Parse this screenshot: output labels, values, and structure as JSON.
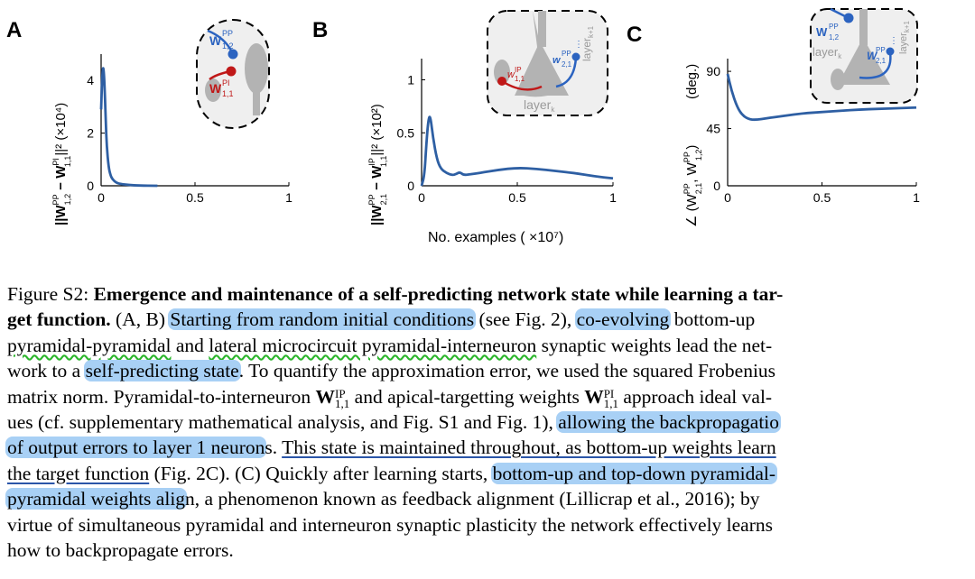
{
  "panels": {
    "a": {
      "letter": "A",
      "ylabel": "||W",
      "ylabel_sup1": "PP",
      "ylabel_sub1": "1,2",
      "ylabel_mid": " − W",
      "ylabel_sup2": "PI",
      "ylabel_sub2": "1,1",
      "ylabel_end": "||² (×10⁴)",
      "inset": {
        "w1": "W",
        "w1_sup": "PP",
        "w1_sub": "1,2",
        "w2": "W",
        "w2_sup": "PI",
        "w2_sub": "1,1"
      }
    },
    "b": {
      "letter": "B",
      "ylabel": "||W",
      "ylabel_sup1": "PP",
      "ylabel_sub1": "2,1",
      "ylabel_mid": " − W",
      "ylabel_sup2": "IP",
      "ylabel_sub2": "1,1",
      "ylabel_end": "||² (×10²)",
      "xlabel": "No. examples (  ×10⁷)",
      "inset": {
        "w1": "w",
        "w1_sup": "IP",
        "w1_sub": "1,1",
        "w2": "w",
        "w2_sup": "PP",
        "w2_sub": "2,1",
        "layer1": "layer",
        "layer1_sub": "k",
        "layer2": "layer",
        "layer2_sub": "k+1"
      }
    },
    "c": {
      "letter": "C",
      "ylabel": "∠ (W",
      "ylabel_sup1": "PP",
      "ylabel_sub1": "2,1",
      "ylabel_mid": ", W",
      "ylabel_sup2": "PP",
      "ylabel_sub2": "1,2",
      "ylabel_end": ")",
      "ylabel_unit": "(deg.)",
      "inset": {
        "w1": "W",
        "w1_sup": "PP",
        "w1_sub": "1,2",
        "w2": "W",
        "w2_sup": "PP",
        "w2_sub": "2,1",
        "layer1": "layer",
        "layer1_sub": "k",
        "layer2": "layer",
        "layer2_sub": "k+1"
      }
    }
  },
  "chart_data": [
    {
      "type": "line",
      "xlim": [
        0,
        1
      ],
      "ylim": [
        0,
        5
      ],
      "xticks": [
        "0",
        "0.5",
        "1"
      ],
      "yticks": [
        "0",
        "2",
        "4"
      ],
      "series": [
        {
          "x": [
            0,
            0.005,
            0.01,
            0.015,
            0.02,
            0.025,
            0.03,
            0.04,
            0.05,
            0.06,
            0.08,
            0.1,
            0.15,
            0.2,
            0.3
          ],
          "y": [
            2.9,
            4.0,
            4.55,
            4.3,
            3.5,
            2.4,
            1.5,
            0.7,
            0.4,
            0.25,
            0.12,
            0.07,
            0.03,
            0.01,
            0
          ]
        }
      ]
    },
    {
      "type": "line",
      "xlim": [
        0,
        1
      ],
      "ylim": [
        0,
        1.2
      ],
      "xticks": [
        "0",
        "0.5",
        "1"
      ],
      "yticks": [
        "0",
        "0.5",
        "1"
      ],
      "series": [
        {
          "x": [
            0,
            0.015,
            0.025,
            0.035,
            0.045,
            0.06,
            0.08,
            0.1,
            0.13,
            0.16,
            0.18,
            0.2,
            0.22,
            0.26,
            0.3,
            0.4,
            0.5,
            0.6,
            0.7,
            0.8,
            0.9,
            1.0
          ],
          "y": [
            0,
            0.1,
            0.4,
            0.62,
            0.67,
            0.45,
            0.25,
            0.16,
            0.12,
            0.1,
            0.11,
            0.13,
            0.1,
            0.11,
            0.12,
            0.15,
            0.17,
            0.16,
            0.14,
            0.12,
            0.09,
            0.07
          ]
        }
      ]
    },
    {
      "type": "line",
      "xlim": [
        0,
        1
      ],
      "ylim": [
        0,
        100
      ],
      "xticks": [
        "0",
        "0.5",
        "1"
      ],
      "yticks": [
        "0",
        "45",
        "90"
      ],
      "series": [
        {
          "x": [
            0,
            0.02,
            0.05,
            0.08,
            0.12,
            0.16,
            0.2,
            0.3,
            0.4,
            0.5,
            0.6,
            0.7,
            0.8,
            0.9,
            1.0
          ],
          "y": [
            88,
            75,
            62,
            55,
            52,
            52,
            53,
            55,
            57,
            58,
            59,
            60,
            60.5,
            61,
            61.5
          ]
        }
      ]
    }
  ],
  "caption": {
    "label": "Figure S2:",
    "title_line1": "Emergence and maintenance of a self-predicting network state while learning a tar-",
    "title_line2": "get function.",
    "l2_ab": "(A, B)",
    "l2_hl1": "Starting from random initial conditions",
    "l2_mid": "(see Fig. 2),",
    "l2_hl2": "co-evolving",
    "l2_end": "bottom-up",
    "l3_wavy1": "pyramidal-pyramidal",
    "l3_and": "and",
    "l3_wavy2": "lateral microcircuit pyramidal-interneuron",
    "l3_end": "synaptic weights lead the net-",
    "l4_start": "work to a",
    "l4_hl": "self-predicting state",
    "l4_end": ". To quantify the approximation error, we used the squared Frobenius",
    "l5_start": "matrix norm. Pyramidal-to-interneuron",
    "l5_w1": "W",
    "l5_w1_sup": "IP",
    "l5_w1_sub": "1,1",
    "l5_mid": "and apical-targetting weights",
    "l5_w2": "W",
    "l5_w2_sup": "PI",
    "l5_w2_sub": "1,1",
    "l5_end": "approach ideal val-",
    "l6_start": "ues (cf. supplementary mathematical analysis, and Fig. S1 and Fig. 1),",
    "l6_hl": "allowing the backpropagatio",
    "l7_hl": "of output errors to layer 1 neuron",
    "l7_s": "s.",
    "l7_ul": "This state is maintained throughout, as bottom-up weights learn",
    "l8_ul": "the target function",
    "l8_mid": "(Fig. 2C). (C) Quickly after learning starts,",
    "l8_hl": "bottom-up and top-down pyramidal-",
    "l9_hl": "pyramidal weights alig",
    "l9_end": "n, a phenomenon known as feedback alignment (Lillicrap et al., 2016); by",
    "l10": "virtue of simultaneous pyramidal and interneuron synaptic plasticity the network effectively learns",
    "l11": "how to backpropagate errors."
  },
  "colors": {
    "curve": "#2e5fa3",
    "blue": "#2b63c0",
    "red": "#c01818",
    "highlight": "#a8d0f5",
    "underline": "#2a55a8",
    "wavy": "#2bb52b",
    "inset_bg": "#efefef",
    "neuron": "#b3b3b3"
  }
}
